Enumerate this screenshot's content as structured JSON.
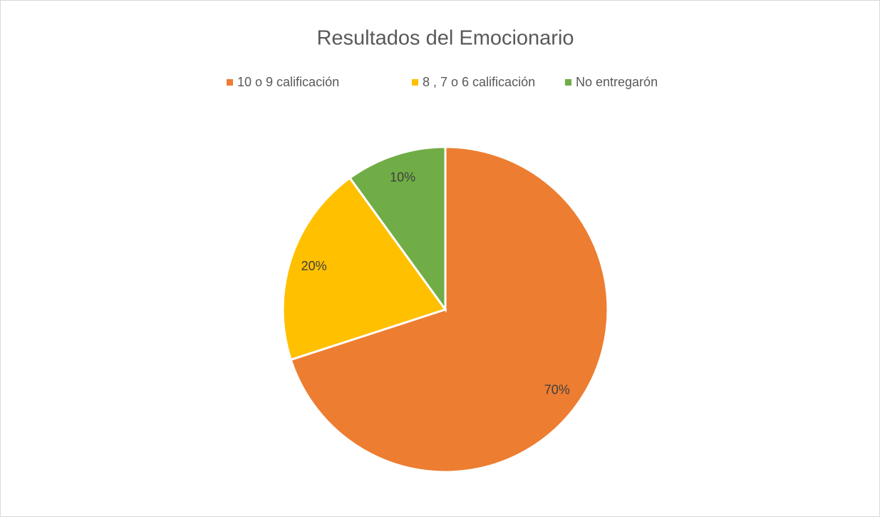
{
  "chart_data": {
    "type": "pie",
    "title": "Resultados del Emocionario",
    "categories": [
      "10 o 9 calificación",
      "8 , 7 o 6 calificación",
      "No entregarón"
    ],
    "values": [
      70,
      20,
      10
    ],
    "value_labels": [
      "70%",
      "20%",
      "10%"
    ],
    "colors": [
      "#ed7d31",
      "#ffc000",
      "#70ad47"
    ],
    "legend": "top"
  }
}
